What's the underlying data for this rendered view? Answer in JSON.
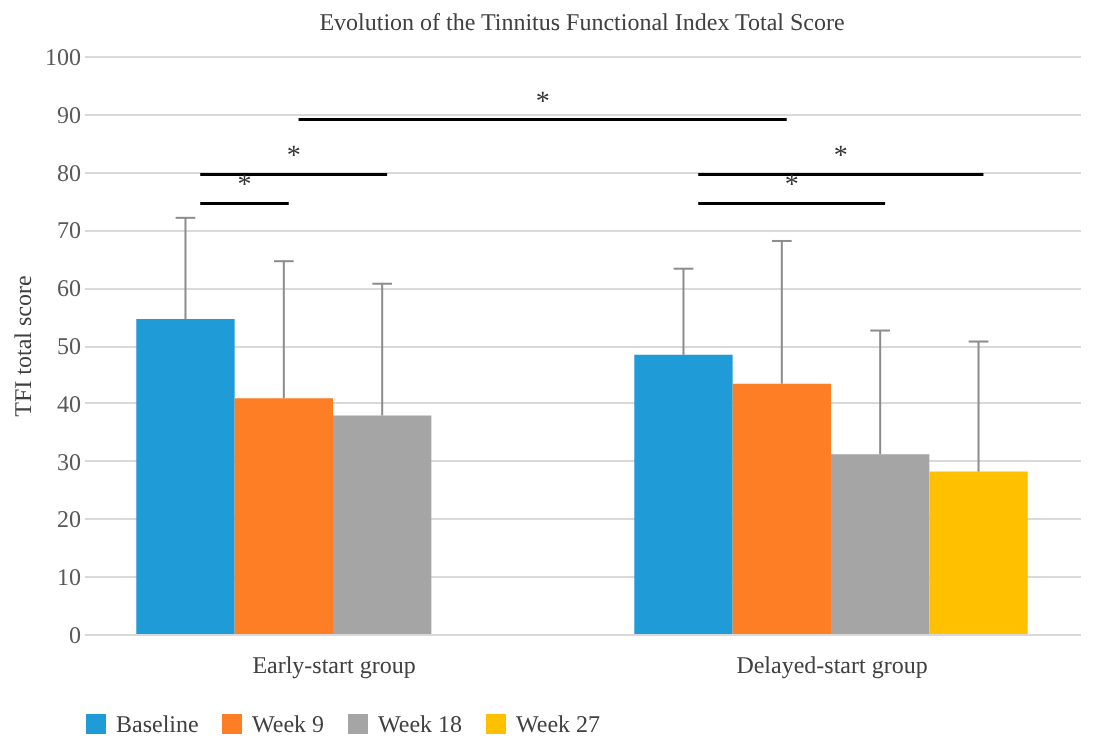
{
  "chart_data": {
    "type": "bar",
    "title": "Evolution of the Tinnitus Functional Index Total Score",
    "ylabel": "TFI total score",
    "categories": [
      "Early-start group",
      "Delayed-start group"
    ],
    "series": [
      {
        "name": "Baseline",
        "color": "#1f9bd7",
        "values": [
          54.5,
          48.3
        ],
        "errors": [
          [
            54.5,
            72
          ],
          [
            48.3,
            63.2
          ]
        ]
      },
      {
        "name": "Week 9",
        "color": "#fd7e24",
        "values": [
          40.8,
          43.3
        ],
        "errors": [
          [
            40.8,
            64.5
          ],
          [
            43.3,
            68
          ]
        ]
      },
      {
        "name": "Week 18",
        "color": "#a5a5a5",
        "values": [
          37.8,
          31.1
        ],
        "errors": [
          [
            37.8,
            60.6
          ],
          [
            31.1,
            52.5
          ]
        ]
      },
      {
        "name": "Week 27",
        "color": "#ffc000",
        "values": [
          null,
          28.1
        ],
        "errors": [
          null,
          [
            28.1,
            50.6
          ]
        ]
      }
    ],
    "ylim": [
      0,
      100
    ],
    "yticks": [
      0,
      10,
      20,
      30,
      40,
      50,
      60,
      70,
      80,
      90,
      100
    ],
    "grid": "y",
    "legend": "bottom",
    "annotations": [
      "*",
      "*",
      "*",
      "*",
      "*"
    ]
  }
}
